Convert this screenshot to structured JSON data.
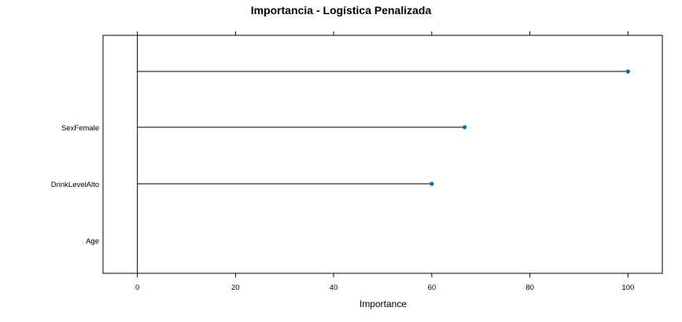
{
  "chart_data": {
    "type": "lollipop",
    "title": "Importancia - Logística Penalizada",
    "xlabel": "Importance",
    "ylabel": "",
    "xlim": [
      -7,
      107
    ],
    "xticks": [
      0,
      20,
      40,
      60,
      80,
      100
    ],
    "xtick_labels": [
      "0",
      "20",
      "40",
      "60",
      "80",
      "100"
    ],
    "categories": [
      "",
      "SexFemale",
      "DrinkLevelAlto",
      "Age"
    ],
    "values": [
      100,
      66.7,
      60,
      0
    ],
    "point_color": "#0072b2",
    "grid": false
  }
}
